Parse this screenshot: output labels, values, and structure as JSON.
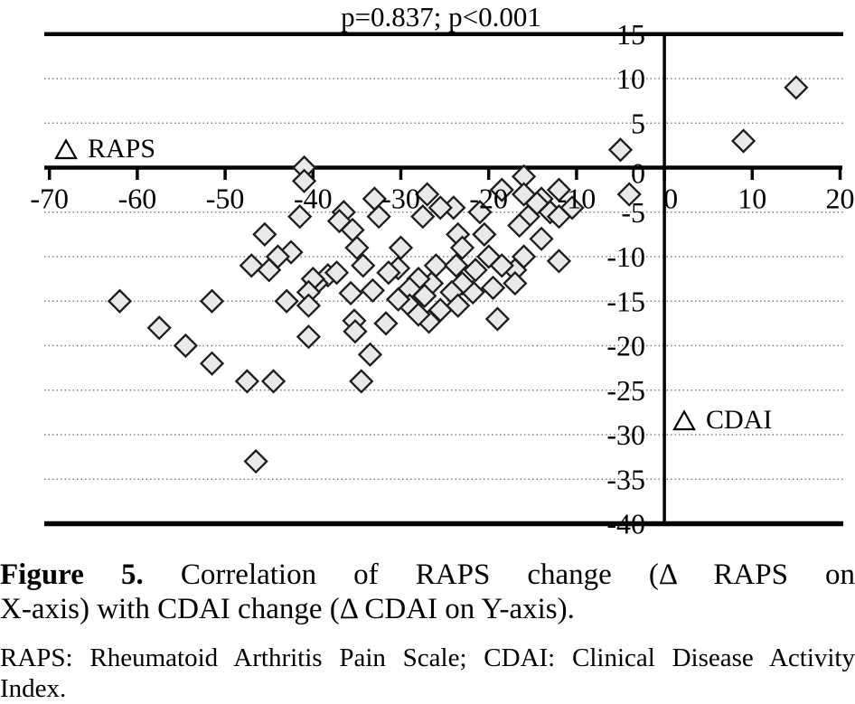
{
  "title": "p=0.837; p<0.001",
  "labels": {
    "raps": "RAPS",
    "cdai": "CDAI"
  },
  "chart_data": {
    "type": "scatter",
    "title": "p=0.837; p<0.001",
    "x_variable": "Δ RAPS",
    "y_variable": "Δ CDAI",
    "marker": "diamond",
    "legend": "none",
    "grid": "dotted-horizontal",
    "xlim": [
      -70.9,
      21.8
    ],
    "ylim": [
      -40.4,
      15
    ],
    "x_ticks": [
      -70,
      -60,
      -50,
      -40,
      -30,
      -20,
      -10,
      0,
      10,
      20
    ],
    "y_ticks": [
      15,
      10,
      5,
      0,
      -5,
      -10,
      -15,
      -20,
      -25,
      -30,
      -35,
      -40
    ],
    "gridlines_y": [
      10,
      5,
      -5,
      -10,
      -15,
      -20,
      -25,
      -30,
      -35
    ],
    "points": [
      [
        15,
        9
      ],
      [
        9,
        3
      ],
      [
        -5,
        2
      ],
      [
        -4,
        -3
      ],
      [
        -12,
        -2.5
      ],
      [
        -14,
        -3.5
      ],
      [
        -13,
        -5
      ],
      [
        -10.5,
        -4.5
      ],
      [
        -12,
        -5.5
      ],
      [
        -14,
        -8
      ],
      [
        -12,
        -10.5
      ],
      [
        -16,
        -1
      ],
      [
        -16,
        -3
      ],
      [
        -18.5,
        -2.5
      ],
      [
        -14.5,
        -4
      ],
      [
        -15.5,
        -5.5
      ],
      [
        -16.5,
        -6.5
      ],
      [
        -16,
        -10
      ],
      [
        -17,
        -11.5
      ],
      [
        -18.5,
        -11
      ],
      [
        -17,
        -13
      ],
      [
        -21,
        -5
      ],
      [
        -20.5,
        -7.5
      ],
      [
        -23.5,
        -7.5
      ],
      [
        -24,
        -4.5
      ],
      [
        -23,
        -9
      ],
      [
        -20,
        -10
      ],
      [
        -21.5,
        -11.5
      ],
      [
        -19.5,
        -13.5
      ],
      [
        -19,
        -17
      ],
      [
        -21.8,
        -14
      ],
      [
        -23,
        -13
      ],
      [
        -24.2,
        -14
      ],
      [
        -23.5,
        -15.5
      ],
      [
        -25.5,
        -16
      ],
      [
        -26.8,
        -17.3
      ],
      [
        -26,
        -11
      ],
      [
        -23.7,
        -11
      ],
      [
        -27,
        -3
      ],
      [
        -27.5,
        -5.5
      ],
      [
        -25.5,
        -4.5
      ],
      [
        -33,
        -3.5
      ],
      [
        -32.5,
        -5.5
      ],
      [
        -36.5,
        -5
      ],
      [
        -37,
        -6
      ],
      [
        -35.5,
        -7
      ],
      [
        -35,
        -9
      ],
      [
        -30,
        -9
      ],
      [
        -30.3,
        -11.3
      ],
      [
        -31.4,
        -11.8
      ],
      [
        -26.5,
        -13
      ],
      [
        -28,
        -12.5
      ],
      [
        -29,
        -13.6
      ],
      [
        -27.3,
        -14.4
      ],
      [
        -29,
        -15.5
      ],
      [
        -30.3,
        -14.8
      ],
      [
        -28,
        -16.5
      ],
      [
        -31.7,
        -17.5
      ],
      [
        -34.3,
        -11
      ],
      [
        -33.2,
        -13.8
      ],
      [
        -35.7,
        -14.1
      ],
      [
        -38.3,
        -12.1
      ],
      [
        -37.3,
        -11.8
      ],
      [
        -39.6,
        -13
      ],
      [
        -35.3,
        -17.2
      ],
      [
        -35.2,
        -18.4
      ],
      [
        -40,
        -12.5
      ],
      [
        -40.5,
        -14
      ],
      [
        -40.5,
        -15.5
      ],
      [
        -40.5,
        -19
      ],
      [
        -41,
        0
      ],
      [
        -41,
        -1.5
      ],
      [
        -41.5,
        -5.5
      ],
      [
        -45.5,
        -7.5
      ],
      [
        -42.5,
        -9.5
      ],
      [
        -44,
        -10
      ],
      [
        -45,
        -11.5
      ],
      [
        -47,
        -11
      ],
      [
        -43,
        -15
      ],
      [
        -62,
        -15
      ],
      [
        -51.5,
        -15
      ],
      [
        -57.5,
        -18
      ],
      [
        -54.5,
        -20
      ],
      [
        -51.5,
        -22
      ],
      [
        -47.5,
        -24
      ],
      [
        -44.5,
        -24
      ],
      [
        -46.5,
        -33
      ],
      [
        -33.5,
        -21
      ],
      [
        -34.5,
        -24
      ]
    ]
  },
  "caption": {
    "bold": "Figure 5.",
    "line1_rest": "Correlation of RAPS change (Δ RAPS on",
    "line2": "X-axis) with CDAI change (Δ CDAI on Y-axis)."
  },
  "footnote": {
    "line1": "RAPS: Rheumatoid Arthritis Pain Scale; CDAI: Clinical Disease Activity",
    "line2": "Index."
  },
  "colors": {
    "marker_fill": "#e9e9e9",
    "marker_stroke": "#1c1c1c",
    "axis": "#000000",
    "grid": "#808080",
    "text": "#000000"
  }
}
